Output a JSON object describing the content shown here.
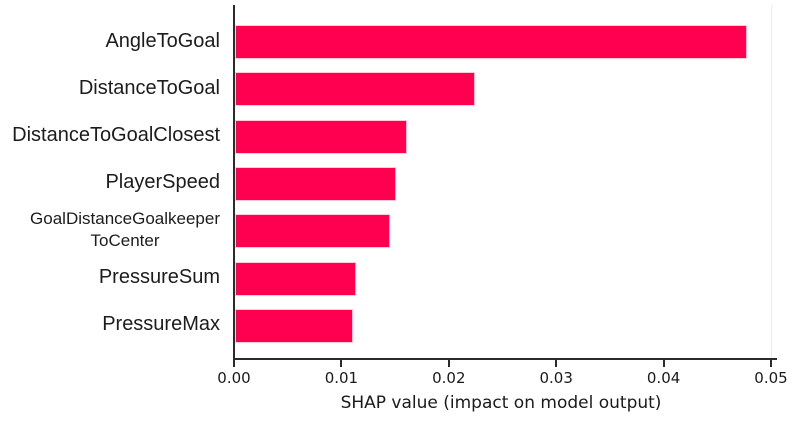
{
  "chart_data": {
    "type": "bar",
    "orientation": "horizontal",
    "title": "",
    "xlabel": "SHAP value (impact on model output)",
    "ylabel": "",
    "categories": [
      "AngleToGoal",
      "DistanceToGoal",
      "DistanceToGoalClosest",
      "PlayerSpeed",
      "GoalDistanceGoalkeeper\nToCenter",
      "PressureSum",
      "PressureMax"
    ],
    "values": [
      0.0477,
      0.0223,
      0.016,
      0.015,
      0.0144,
      0.0113,
      0.011
    ],
    "xlim": [
      0,
      0.05
    ],
    "xticks": [
      0.0,
      0.01,
      0.02,
      0.03,
      0.04,
      0.05
    ],
    "xtick_labels": [
      "0.00",
      "0.01",
      "0.02",
      "0.03",
      "0.04",
      "0.05"
    ],
    "grid": false,
    "legend": null,
    "bar_color": "#ff0051",
    "axis_color": "#2b2b2b",
    "text_color": "#1a1a1a"
  }
}
